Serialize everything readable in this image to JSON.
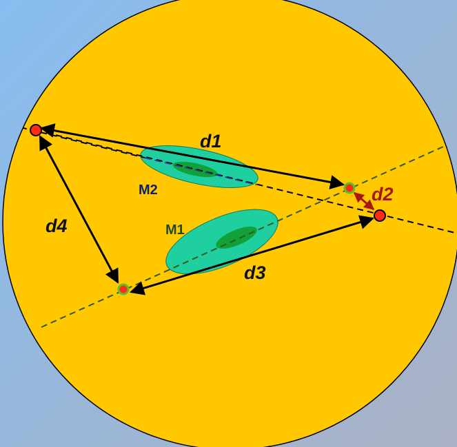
{
  "diagram": {
    "labels": {
      "d1": "d1",
      "d2": "d2",
      "d3": "d3",
      "d4": "d4",
      "m1": "M1",
      "m2": "M2"
    },
    "colors": {
      "background_top": "#8cc0ec",
      "background_bottom": "#a8b2c8",
      "disc": "#ffc800",
      "ellipse_outer": "#1fcf9f",
      "ellipse_inner": "#12a038",
      "endpoint_red": "#ff2b12",
      "endpoint_green": "#5fbf2f",
      "line_dark_green": "#2e5b1a",
      "line_navy": "#2a3a8a",
      "arrow": "#000000",
      "d2_accent": "#a8180c",
      "m1_label": "#1f4a1f",
      "m2_label": "#0f1f6e"
    }
  }
}
